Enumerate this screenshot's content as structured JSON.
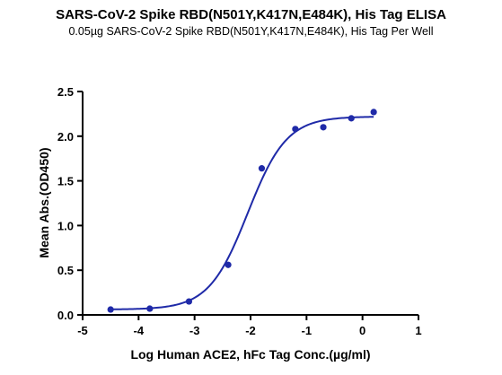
{
  "chart_data": {
    "type": "scatter",
    "title": "SARS-CoV-2 Spike RBD(N501Y,K417N,E484K), His Tag ELISA",
    "subtitle": "0.05µg SARS-CoV-2 Spike RBD(N501Y,K417N,E484K), His Tag Per Well",
    "xlabel": "Log Human ACE2, hFc Tag Conc.(µg/ml)",
    "ylabel": "Mean Abs.(OD450)",
    "xlim": [
      -5,
      1
    ],
    "ylim": [
      0.0,
      2.5
    ],
    "xticks": [
      "-5",
      "-4",
      "-3",
      "-2",
      "-1",
      "0",
      "1"
    ],
    "yticks": [
      "0.0",
      "0.5",
      "1.0",
      "1.5",
      "2.0",
      "2.5"
    ],
    "grid": false,
    "legend": "none",
    "series": [
      {
        "x": [
          -4.5,
          -3.8,
          -3.1,
          -2.4,
          -1.8,
          -1.2,
          -0.7,
          -0.2,
          0.2
        ],
        "y": [
          0.06,
          0.07,
          0.15,
          0.56,
          1.64,
          2.08,
          2.1,
          2.2,
          2.27
        ],
        "color": "#1f2aa8",
        "fit": {
          "model": "4PL",
          "bottom": 0.06,
          "top": 2.22,
          "logEC50": -2.05,
          "hill": 1.25,
          "color": "#1f2aa8"
        }
      }
    ]
  }
}
